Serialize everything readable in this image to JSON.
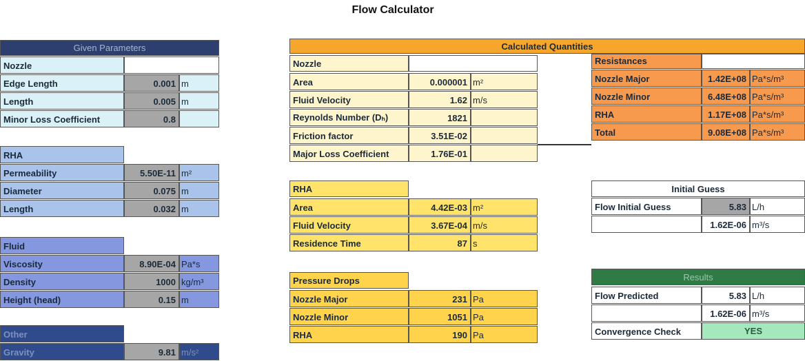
{
  "title": "Flow Calculator",
  "given": {
    "header": "Given Parameters",
    "sections": [
      {
        "name": "Nozzle",
        "rows": [
          {
            "label": "Edge Length",
            "value": "0.001",
            "unit": "m"
          },
          {
            "label": "Length",
            "value": "0.005",
            "unit": "m"
          },
          {
            "label": "Minor Loss Coefficient",
            "value": "0.8"
          }
        ]
      },
      {
        "name": "RHA",
        "rows": [
          {
            "label": "Permeability",
            "value": "5.50E-11",
            "unit": "m²"
          },
          {
            "label": "Diameter",
            "value": "0.075",
            "unit": "m"
          },
          {
            "label": "Length",
            "value": "0.032",
            "unit": "m"
          }
        ]
      },
      {
        "name": "Fluid",
        "rows": [
          {
            "label": "Viscosity",
            "value": "8.90E-04",
            "unit": "Pa*s"
          },
          {
            "label": "Density",
            "value": "1000",
            "unit": "kg/m³"
          },
          {
            "label": "Height (head)",
            "value": "0.15",
            "unit": "m"
          }
        ]
      },
      {
        "name": "Other",
        "rows": [
          {
            "label": "Gravity",
            "value": "9.81",
            "unit": "m/s²"
          }
        ]
      }
    ]
  },
  "calculated": {
    "header": "Calculated Quantities",
    "sections": [
      {
        "name": "Nozzle",
        "rows": [
          {
            "label": "Area",
            "value": "0.000001",
            "unit": "m²"
          },
          {
            "label": "Fluid Velocity",
            "value": "1.62",
            "unit": "m/s"
          },
          {
            "label": "Reynolds Number (Dₕ)",
            "value": "1821"
          },
          {
            "label": "Friction factor",
            "value": "3.51E-02"
          },
          {
            "label": "Major Loss Coefficient",
            "value": "1.76E-01"
          }
        ]
      },
      {
        "name": "RHA",
        "rows": [
          {
            "label": "Area",
            "value": "4.42E-03",
            "unit": "m²"
          },
          {
            "label": "Fluid Velocity",
            "value": "3.67E-04",
            "unit": "m/s"
          },
          {
            "label": "Residence Time",
            "value": "87",
            "unit": "s"
          }
        ]
      },
      {
        "name": "Pressure Drops",
        "rows": [
          {
            "label": "Nozzle Major",
            "value": "231",
            "unit": "Pa"
          },
          {
            "label": "Nozzle Minor",
            "value": "1051",
            "unit": "Pa"
          },
          {
            "label": "RHA",
            "value": "190",
            "unit": "Pa"
          }
        ]
      }
    ]
  },
  "resistances": {
    "name": "Resistances",
    "rows": [
      {
        "label": "Nozzle Major",
        "value": "1.42E+08",
        "unit": "Pa*s/m³"
      },
      {
        "label": "Nozzle Minor",
        "value": "6.48E+08",
        "unit": "Pa*s/m³"
      },
      {
        "label": "RHA",
        "value": "1.17E+08",
        "unit": "Pa*s/m³"
      },
      {
        "label": "Total",
        "value": "9.08E+08",
        "unit": "Pa*s/m³"
      }
    ]
  },
  "initial_guess": {
    "header": "Initial Guess",
    "rows": [
      {
        "label": "Flow Initial Guess",
        "value": "5.83",
        "unit": "L/h"
      },
      {
        "value": "1.62E-06",
        "unit": "m³/s"
      }
    ]
  },
  "results": {
    "header": "Results",
    "rows": [
      {
        "label": "Flow Predicted",
        "value": "5.83",
        "unit": "L/h"
      },
      {
        "value": "1.62E-06",
        "unit": "m³/s"
      },
      {
        "label": "Convergence Check",
        "value": "YES"
      }
    ]
  }
}
